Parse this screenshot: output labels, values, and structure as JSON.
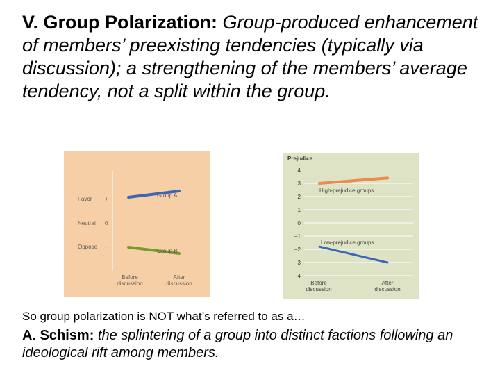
{
  "heading": {
    "bold": "V. Group Polarization:",
    "italic": " Group-produced enhancement of members’ preexisting tendencies (typically via discussion); a strengthening of the members’ average tendency, not a split within the group."
  },
  "colors": {
    "panel_a_bg": "#f7cfa6",
    "panel_b_bg": "#dde3c4",
    "blue": "#3c67b4",
    "green": "#7a9a2b",
    "orange": "#ea8c4e",
    "axis_text": "#5a5a5a"
  },
  "chart_data": [
    {
      "type": "line",
      "categories": [
        "Before discussion",
        "After discussion"
      ],
      "y_tick_labels": [
        "Favor",
        "+",
        "Neutral",
        "0",
        "Oppose",
        "–"
      ],
      "ylim": [
        -1.3,
        1.3
      ],
      "series": [
        {
          "name": "Group A",
          "values": [
            1.0,
            1.25
          ]
        },
        {
          "name": "Group B",
          "values": [
            -1.0,
            -1.25
          ]
        }
      ],
      "grid": false
    },
    {
      "type": "line",
      "ylabel": "Prejudice",
      "categories": [
        "Before discussion",
        "After discussion"
      ],
      "y_ticks": [
        "4",
        "3",
        "2",
        "1",
        "0",
        "−1",
        "−2",
        "−3",
        "−4"
      ],
      "ylim": [
        -4,
        4
      ],
      "series": [
        {
          "name": "High-prejudice groups",
          "values": [
            3.0,
            3.4
          ]
        },
        {
          "name": "Low-prejudice groups",
          "values": [
            -1.8,
            -3.0
          ]
        }
      ],
      "grid": true
    }
  ],
  "note": "So group polarization is NOT what’s referred to as a…",
  "schism": {
    "bold": "A. Schism:",
    "italic": " the splintering of a group into distinct factions following an ideological rift among members."
  }
}
